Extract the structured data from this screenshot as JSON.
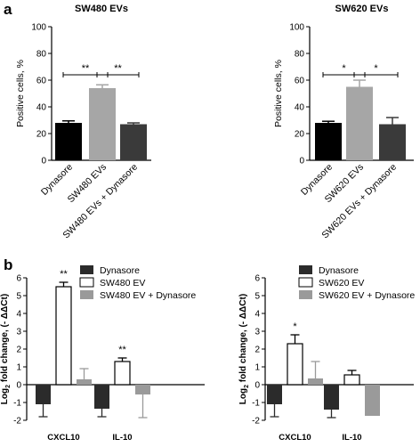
{
  "panels": [
    {
      "letter": "a"
    },
    {
      "letter": "b"
    }
  ],
  "colors": {
    "black": "#000000",
    "mid_gray": "#a6a6a6",
    "light_gray": "#b4b4b4",
    "dark_gray": "#3a3a3a",
    "white": "#ffffff",
    "gray_b": "#9a9a9a"
  },
  "chart_data": [
    {
      "type": "bar",
      "panel": "a",
      "title": "SW480  EVs",
      "ylabel": "Positive cells, %",
      "ylim": [
        0,
        100
      ],
      "yticks": [
        "0",
        "20",
        "40",
        "60",
        "80",
        "100"
      ],
      "categories": [
        "Dynasore",
        "SW480 EVs",
        "SW480 EVs + Dynasore"
      ],
      "values": [
        28,
        54,
        27
      ],
      "errors": [
        1.5,
        2.5,
        1
      ],
      "bar_colors": [
        "#000000",
        "#a6a6a6",
        "#3a3a3a"
      ],
      "significance": [
        {
          "from": 0,
          "to": 1,
          "y": 64,
          "label": "**"
        },
        {
          "from": 1,
          "to": 2,
          "y": 64,
          "label": "**"
        }
      ],
      "grid": false
    },
    {
      "type": "bar",
      "panel": "a",
      "title": "SW620 EVs",
      "ylabel": "Positive cells, %",
      "ylim": [
        0,
        100
      ],
      "yticks": [
        "0",
        "20",
        "40",
        "60",
        "80",
        "100"
      ],
      "categories": [
        "Dynasore",
        "SW620 EVs",
        "SW620 EVs + Dynasore"
      ],
      "values": [
        28,
        55,
        27
      ],
      "errors": [
        1.2,
        5,
        5
      ],
      "bar_colors": [
        "#000000",
        "#a6a6a6",
        "#3a3a3a"
      ],
      "significance": [
        {
          "from": 0,
          "to": 1,
          "y": 64,
          "label": "*"
        },
        {
          "from": 1,
          "to": 2,
          "y": 64,
          "label": "*"
        }
      ],
      "grid": false
    },
    {
      "type": "bar",
      "panel": "b",
      "ylabel_main": "Log",
      "ylabel_sub": "2",
      "ylabel_rest": " fold change, (- ΔΔCt)",
      "ylim": [
        -2,
        6
      ],
      "yticks": [
        "-2",
        "-1",
        "0",
        "1",
        "2",
        "3",
        "4",
        "5",
        "6"
      ],
      "categories": [
        "CXCL10",
        "IL-10"
      ],
      "series": [
        {
          "name": "Dynasore",
          "values": [
            -1.1,
            -1.35
          ],
          "errors": [
            0.7,
            0.45
          ],
          "color": "#2b2b2b"
        },
        {
          "name": "SW480 EV",
          "values": [
            5.5,
            1.3
          ],
          "errors": [
            0.25,
            0.2
          ],
          "color": "#ffffff"
        },
        {
          "name": "SW480 EV + Dynasore",
          "values": [
            0.3,
            -0.55
          ],
          "errors": [
            0.6,
            1.3
          ],
          "color": "#9a9a9a"
        }
      ],
      "annotations": [
        {
          "category": 0,
          "series": 1,
          "label": "**"
        },
        {
          "category": 1,
          "series": 1,
          "label": "**"
        }
      ],
      "legend": "top-right",
      "grid": false
    },
    {
      "type": "bar",
      "panel": "b",
      "ylabel_main": "Log",
      "ylabel_sub": "2",
      "ylabel_rest": " fold change, (- ΔΔCt)",
      "ylim": [
        -2,
        6
      ],
      "yticks": [
        "-2",
        "-1",
        "0",
        "1",
        "2",
        "3",
        "4",
        "5",
        "6"
      ],
      "categories": [
        "CXCL10",
        "IL-10"
      ],
      "series": [
        {
          "name": "Dynasore",
          "values": [
            -1.1,
            -1.4
          ],
          "errors": [
            0.7,
            0.45
          ],
          "color": "#2b2b2b"
        },
        {
          "name": "SW620 EV",
          "values": [
            2.3,
            0.55
          ],
          "errors": [
            0.5,
            0.25
          ],
          "color": "#ffffff"
        },
        {
          "name": "SW620 EV + Dynasore",
          "values": [
            0.35,
            -1.75
          ],
          "errors": [
            0.95,
            0.0
          ],
          "color": "#9a9a9a"
        }
      ],
      "annotations": [
        {
          "category": 0,
          "series": 1,
          "label": "*"
        }
      ],
      "legend": "top-right",
      "grid": false
    }
  ]
}
